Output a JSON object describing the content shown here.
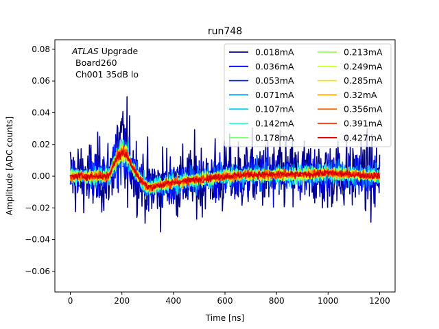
{
  "chart_data": {
    "type": "line",
    "title": "run748",
    "xlabel": "Time [ns]",
    "ylabel": "Amplitude [ADC counts]",
    "xlim": [
      -60,
      1260
    ],
    "ylim": [
      -0.073,
      0.086
    ],
    "xticks": [
      0,
      200,
      400,
      600,
      800,
      1000,
      1200
    ],
    "xtick_labels": [
      "0",
      "200",
      "400",
      "600",
      "800",
      "1000",
      "1200"
    ],
    "yticks": [
      -0.06,
      -0.04,
      -0.02,
      0.0,
      0.02,
      0.04,
      0.06,
      0.08
    ],
    "ytick_labels": [
      "−0.06",
      "−0.04",
      "−0.02",
      "0.00",
      "0.02",
      "0.04",
      "0.06",
      "0.08"
    ],
    "annotation": {
      "italic": "ATLAS",
      "rest": " Upgrade",
      "line2": "Board260",
      "line3": "Ch001 35dB lo"
    },
    "legend_position": "top-right",
    "time_range_ns": [
      0,
      1200
    ],
    "pulse_shape": {
      "t": [
        0,
        150,
        175,
        200,
        215,
        240,
        270,
        300,
        340,
        400,
        500,
        600,
        700,
        800,
        900,
        1000,
        1100,
        1200
      ],
      "v": [
        0.0,
        0.0,
        0.01,
        0.016,
        0.014,
        0.006,
        -0.002,
        -0.007,
        -0.006,
        -0.004,
        -0.002,
        0.0,
        0.001,
        0.001,
        0.001,
        0.002,
        0.001,
        0.0
      ]
    },
    "series": [
      {
        "name": "0.018mA",
        "color": "#00007f",
        "noise": 0.0195
      },
      {
        "name": "0.036mA",
        "color": "#0000e1",
        "noise": 0.011
      },
      {
        "name": "0.053mA",
        "color": "#0022ff",
        "noise": 0.008
      },
      {
        "name": "0.071mA",
        "color": "#007dff",
        "noise": 0.0062
      },
      {
        "name": "0.107mA",
        "color": "#00d4ff",
        "noise": 0.005
      },
      {
        "name": "0.142mA",
        "color": "#29ffce",
        "noise": 0.0042
      },
      {
        "name": "0.178mA",
        "color": "#7dff7a",
        "noise": 0.0036
      },
      {
        "name": "0.213mA",
        "color": "#9aff5d",
        "noise": 0.0032
      },
      {
        "name": "0.249mA",
        "color": "#ceff29",
        "noise": 0.0029
      },
      {
        "name": "0.285mA",
        "color": "#ffe500",
        "noise": 0.0026
      },
      {
        "name": "0.32mA",
        "color": "#ffa600",
        "noise": 0.0024
      },
      {
        "name": "0.356mA",
        "color": "#ff6800",
        "noise": 0.0022
      },
      {
        "name": "0.391mA",
        "color": "#ff2900",
        "noise": 0.002
      },
      {
        "name": "0.427mA",
        "color": "#d40000",
        "noise": 0.0018
      }
    ]
  }
}
